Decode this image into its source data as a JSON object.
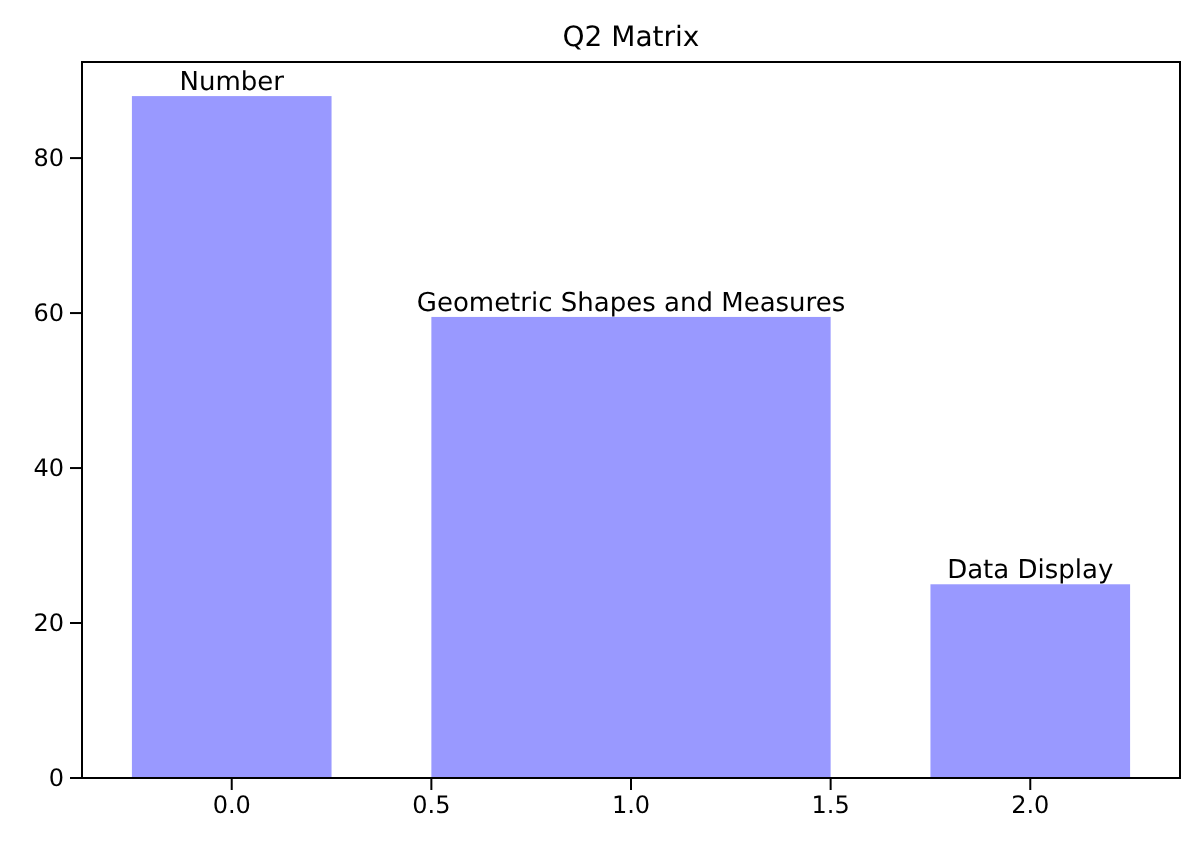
{
  "chart_data": {
    "type": "histogram",
    "title": "Q2 Matrix",
    "bins": [
      -0.25,
      0.25,
      0.5,
      1.5,
      1.75,
      2.25
    ],
    "values": [
      88,
      null,
      59.5,
      null,
      25
    ],
    "color": "#9999ff",
    "xlim": [
      -0.375,
      2.375
    ],
    "xticks": [
      {
        "value": 0,
        "label": "0.0"
      },
      {
        "value": 0.5,
        "label": "0.5"
      },
      {
        "value": 1,
        "label": "1.0"
      },
      {
        "value": 1.5,
        "label": "1.5"
      },
      {
        "value": 2,
        "label": "2.0"
      }
    ],
    "ylim": [
      0,
      92.4
    ],
    "yticks": [
      0,
      20,
      40,
      60,
      80
    ],
    "annotations": [
      {
        "text": "Number",
        "x": 0,
        "y": 88
      },
      {
        "text": "Geometric Shapes and Measures",
        "x": 1,
        "y": 59.5
      },
      {
        "text": "Data Display",
        "x": 2,
        "y": 25
      }
    ]
  }
}
